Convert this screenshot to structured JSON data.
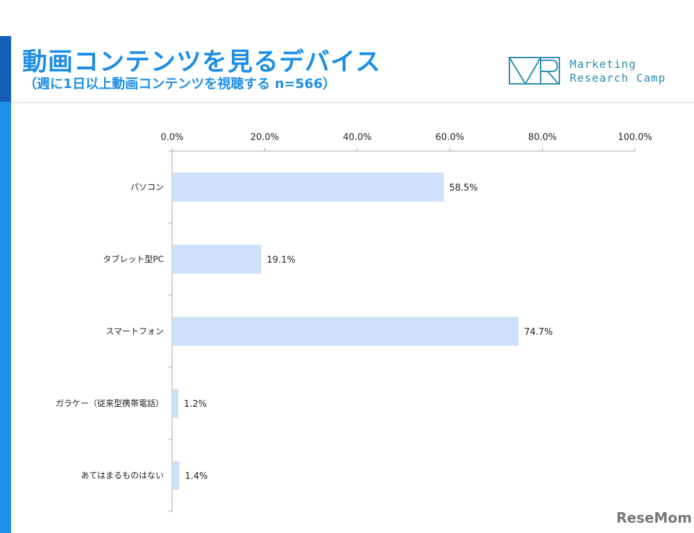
{
  "header": {
    "title": "動画コンテンツを見るデバイス",
    "subtitle": "（週に1日以上動画コンテンツを視聴する n=566）"
  },
  "logo": {
    "line1": "Marketing",
    "line2": "Research Camp",
    "color": "#2b8db3"
  },
  "watermark": "ReseMom",
  "colors": {
    "accent": "#1d8ee6",
    "bar": "#cfe0fa"
  },
  "chart_data": {
    "type": "bar",
    "orientation": "horizontal",
    "categories": [
      "パソコン",
      "タブレット型PC",
      "スマートフォン",
      "ガラケー（従来型携帯電話）",
      "あてはまるものはない"
    ],
    "values": [
      58.5,
      19.1,
      74.7,
      1.2,
      1.4
    ],
    "value_labels": [
      "58.5%",
      "19.1%",
      "74.7%",
      "1.2%",
      "1.4%"
    ],
    "xlim": [
      0,
      100
    ],
    "ticks": [
      0,
      20,
      40,
      60,
      80,
      100
    ],
    "tick_labels": [
      "0.0%",
      "20.0%",
      "40.0%",
      "60.0%",
      "80.0%",
      "100.0%"
    ],
    "grid": false,
    "axis_position": "top"
  }
}
